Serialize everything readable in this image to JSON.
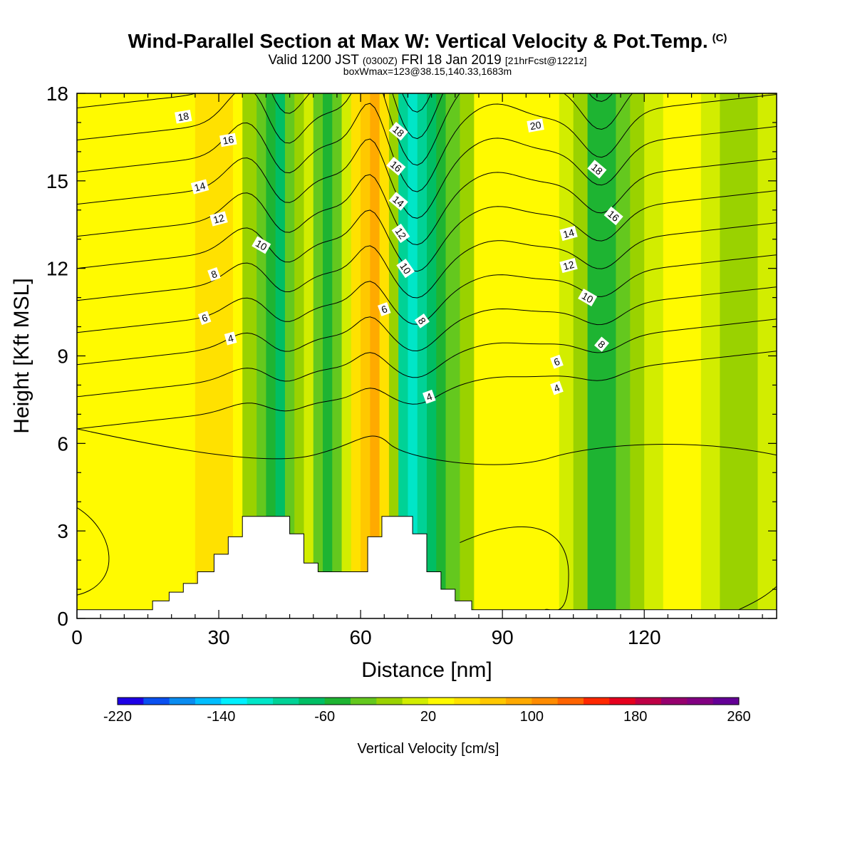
{
  "header": {
    "title": "Wind-Parallel Section at Max W: Vertical Velocity & Pot.Temp.",
    "copyright_mark": "(C)",
    "valid_line_main": "Valid 1200 JST",
    "valid_line_utc": "(0300Z)",
    "valid_line_date": "FRI 18 Jan 2019",
    "valid_line_fcst": "[21hrFcst@1221z]",
    "box_line": "boxWmax=123@38.15,140.33,1683m"
  },
  "chart_data": {
    "type": "heatmap",
    "title": "Wind-Parallel Section at Max W: Vertical Velocity & Pot.Temp.",
    "xlabel": "Distance [nm]",
    "ylabel": "Height [Kft MSL]",
    "xlim": [
      0,
      148
    ],
    "ylim": [
      0,
      18
    ],
    "x_ticks": [
      0,
      30,
      60,
      90,
      120
    ],
    "y_ticks": [
      0,
      3,
      6,
      9,
      12,
      15,
      18
    ],
    "colorbar": {
      "label": "Vertical Velocity [cm/s]",
      "tick_values": [
        -220,
        -140,
        -60,
        20,
        100,
        180,
        260
      ],
      "colors": [
        "#1e00e6",
        "#0a50f0",
        "#0a8cf0",
        "#00beff",
        "#00f0ff",
        "#00e6c8",
        "#00d296",
        "#00be64",
        "#1eb432",
        "#64c81e",
        "#9ad200",
        "#d2ed00",
        "#fffa00",
        "#ffe100",
        "#ffc800",
        "#ffaa00",
        "#ff8c00",
        "#ff6400",
        "#ff2800",
        "#e6001e",
        "#be0046",
        "#96006e",
        "#820082",
        "#640096"
      ]
    },
    "velocity_columns": [
      {
        "x": 0,
        "value": 20
      },
      {
        "x": 4,
        "value": 20
      },
      {
        "x": 8,
        "value": 30
      },
      {
        "x": 12,
        "value": 25
      },
      {
        "x": 16,
        "value": 30
      },
      {
        "x": 20,
        "value": 40
      },
      {
        "x": 25,
        "value": 35
      },
      {
        "x": 28,
        "value": 45
      },
      {
        "x": 31,
        "value": 55
      },
      {
        "x": 33,
        "value": 45
      },
      {
        "x": 35,
        "value": 10
      },
      {
        "x": 38,
        "value": -30
      },
      {
        "x": 40,
        "value": -50
      },
      {
        "x": 42,
        "value": -70
      },
      {
        "x": 44,
        "value": -60
      },
      {
        "x": 46,
        "value": -20
      },
      {
        "x": 48,
        "value": 10
      },
      {
        "x": 50,
        "value": -10
      },
      {
        "x": 52,
        "value": -40
      },
      {
        "x": 54,
        "value": -60
      },
      {
        "x": 56,
        "value": -20
      },
      {
        "x": 58,
        "value": 30
      },
      {
        "x": 60,
        "value": 60
      },
      {
        "x": 62,
        "value": 85
      },
      {
        "x": 64,
        "value": 75
      },
      {
        "x": 66,
        "value": 30
      },
      {
        "x": 68,
        "value": -60
      },
      {
        "x": 70,
        "value": -130
      },
      {
        "x": 72,
        "value": -110
      },
      {
        "x": 74,
        "value": -80
      },
      {
        "x": 76,
        "value": -60
      },
      {
        "x": 78,
        "value": -40
      },
      {
        "x": 81,
        "value": -20
      },
      {
        "x": 84,
        "value": 10
      },
      {
        "x": 87,
        "value": 30
      },
      {
        "x": 90,
        "value": 40
      },
      {
        "x": 93,
        "value": 30
      },
      {
        "x": 96,
        "value": 35
      },
      {
        "x": 99,
        "value": 30
      },
      {
        "x": 102,
        "value": 15
      },
      {
        "x": 105,
        "value": 0
      },
      {
        "x": 108,
        "value": -30
      },
      {
        "x": 111,
        "value": -60
      },
      {
        "x": 114,
        "value": -50
      },
      {
        "x": 117,
        "value": -20
      },
      {
        "x": 120,
        "value": 10
      },
      {
        "x": 124,
        "value": 25
      },
      {
        "x": 128,
        "value": 35
      },
      {
        "x": 132,
        "value": 10
      },
      {
        "x": 136,
        "value": 0
      },
      {
        "x": 140,
        "value": -10
      },
      {
        "x": 144,
        "value": 0
      },
      {
        "x": 148,
        "value": 10
      }
    ],
    "theta_contour_levels": [
      -2,
      0,
      2,
      4,
      6,
      8,
      10,
      12,
      14,
      16,
      18,
      20
    ],
    "theta_contour_labels": [
      {
        "text": "18",
        "x": 22.5,
        "y": 17.2,
        "angle": -10
      },
      {
        "text": "16",
        "x": 32,
        "y": 16.4,
        "angle": -10
      },
      {
        "text": "14",
        "x": 26,
        "y": 14.8,
        "angle": -15
      },
      {
        "text": "12",
        "x": 30,
        "y": 13.7,
        "angle": -15
      },
      {
        "text": "10",
        "x": 39,
        "y": 12.8,
        "angle": 30
      },
      {
        "text": "8",
        "x": 29,
        "y": 11.8,
        "angle": -20
      },
      {
        "text": "6",
        "x": 27,
        "y": 10.3,
        "angle": -20
      },
      {
        "text": "4",
        "x": 32.5,
        "y": 9.6,
        "angle": -15
      },
      {
        "text": "18",
        "x": 68,
        "y": 16.7,
        "angle": 40
      },
      {
        "text": "16",
        "x": 67.5,
        "y": 15.5,
        "angle": 40
      },
      {
        "text": "14",
        "x": 68,
        "y": 14.3,
        "angle": 40
      },
      {
        "text": "12",
        "x": 68.5,
        "y": 13.2,
        "angle": 55
      },
      {
        "text": "10",
        "x": 69.5,
        "y": 12.0,
        "angle": 55
      },
      {
        "text": "6",
        "x": 65,
        "y": 10.6,
        "angle": -20
      },
      {
        "text": "8",
        "x": 73,
        "y": 10.2,
        "angle": 55
      },
      {
        "text": "4",
        "x": 74.5,
        "y": 7.6,
        "angle": -20
      },
      {
        "text": "20",
        "x": 97,
        "y": 16.9,
        "angle": -10
      },
      {
        "text": "18",
        "x": 110,
        "y": 15.4,
        "angle": 40
      },
      {
        "text": "16",
        "x": 113.5,
        "y": 13.8,
        "angle": 40
      },
      {
        "text": "14",
        "x": 104,
        "y": 13.2,
        "angle": -15
      },
      {
        "text": "12",
        "x": 104,
        "y": 12.1,
        "angle": -15
      },
      {
        "text": "10",
        "x": 108,
        "y": 11.0,
        "angle": 30
      },
      {
        "text": "8",
        "x": 111,
        "y": 9.4,
        "angle": 40
      },
      {
        "text": "6",
        "x": 101.5,
        "y": 8.8,
        "angle": -20
      },
      {
        "text": "4",
        "x": 101.5,
        "y": 7.9,
        "angle": -20
      }
    ],
    "terrain_profile": [
      [
        0,
        0.3
      ],
      [
        16,
        0.3
      ],
      [
        16,
        0.6
      ],
      [
        19.5,
        0.6
      ],
      [
        19.5,
        0.9
      ],
      [
        22.5,
        0.9
      ],
      [
        22.5,
        1.2
      ],
      [
        25.5,
        1.2
      ],
      [
        25.5,
        1.6
      ],
      [
        29,
        1.6
      ],
      [
        29,
        2.2
      ],
      [
        32,
        2.2
      ],
      [
        32,
        2.8
      ],
      [
        35,
        2.8
      ],
      [
        35,
        3.5
      ],
      [
        45,
        3.5
      ],
      [
        45,
        2.9
      ],
      [
        48,
        2.9
      ],
      [
        48,
        1.9
      ],
      [
        51,
        1.9
      ],
      [
        51,
        1.6
      ],
      [
        61.5,
        1.6
      ],
      [
        61.5,
        2.8
      ],
      [
        64.5,
        2.8
      ],
      [
        64.5,
        3.5
      ],
      [
        71,
        3.5
      ],
      [
        71,
        2.9
      ],
      [
        74,
        2.9
      ],
      [
        74,
        1.6
      ],
      [
        77,
        1.6
      ],
      [
        77,
        1.0
      ],
      [
        80,
        1.0
      ],
      [
        80,
        0.6
      ],
      [
        83.5,
        0.6
      ],
      [
        83.5,
        0.3
      ],
      [
        148,
        0.3
      ]
    ]
  }
}
